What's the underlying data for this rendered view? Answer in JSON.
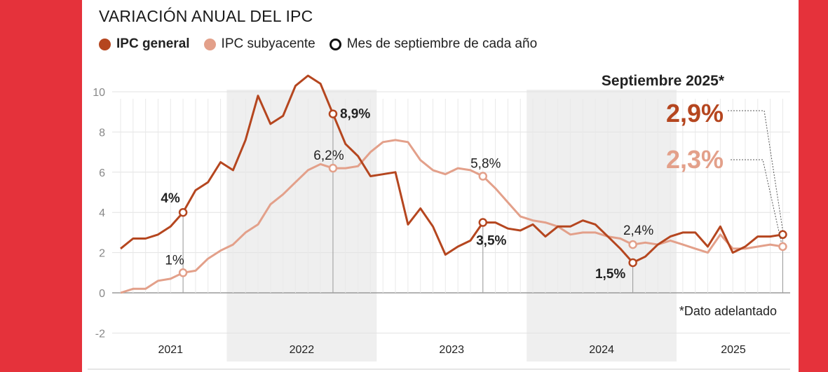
{
  "colors": {
    "frame": "#e5323b",
    "general": "#b5461f",
    "subyacente": "#e3a08a",
    "shade": "#efefef"
  },
  "chart_data": {
    "type": "line",
    "title": "VARIACIÓN ANUAL DEL IPC",
    "legend": [
      {
        "name": "IPC general",
        "marker": "dot-dark"
      },
      {
        "name": "IPC subyacente",
        "marker": "dot-light"
      },
      {
        "name": "Mes de septiembre de cada año",
        "marker": "ring"
      }
    ],
    "legend_position": "top-left",
    "xlabel": "",
    "ylabel": "",
    "ylim": [
      -2,
      10
    ],
    "yticks": [
      -2,
      0,
      2,
      4,
      6,
      8,
      10
    ],
    "grid": true,
    "x_start": "2021-04",
    "x_end": "2025-09",
    "year_labels": [
      "2021",
      "2022",
      "2023",
      "2024",
      "2025"
    ],
    "shaded_years": [
      "2022",
      "2024"
    ],
    "series": [
      {
        "name": "IPC general",
        "values": [
          2.2,
          2.7,
          2.7,
          2.9,
          3.3,
          4.0,
          5.1,
          5.5,
          6.5,
          6.1,
          7.6,
          9.8,
          8.4,
          8.8,
          10.3,
          10.8,
          10.4,
          8.9,
          7.4,
          6.8,
          5.8,
          5.9,
          6.0,
          3.4,
          4.2,
          3.3,
          1.9,
          2.3,
          2.6,
          3.5,
          3.5,
          3.2,
          3.1,
          3.4,
          2.8,
          3.3,
          3.3,
          3.6,
          3.4,
          2.8,
          2.2,
          1.5,
          1.8,
          2.4,
          2.8,
          3.0,
          3.0,
          2.3,
          3.3,
          2.0,
          2.3,
          2.8,
          2.8,
          2.9
        ]
      },
      {
        "name": "IPC subyacente",
        "values": [
          0.0,
          0.2,
          0.2,
          0.6,
          0.7,
          1.0,
          1.1,
          1.7,
          2.1,
          2.4,
          3.0,
          3.4,
          4.4,
          4.9,
          5.5,
          6.1,
          6.4,
          6.2,
          6.2,
          6.3,
          7.0,
          7.5,
          7.6,
          7.5,
          6.6,
          6.1,
          5.9,
          6.2,
          6.1,
          5.8,
          5.2,
          4.5,
          3.8,
          3.6,
          3.5,
          3.3,
          2.9,
          3.0,
          3.0,
          2.8,
          2.7,
          2.4,
          2.5,
          2.4,
          2.6,
          2.4,
          2.2,
          2.0,
          2.9,
          2.2,
          2.2,
          2.3,
          2.4,
          2.3
        ]
      }
    ],
    "annotations": [
      {
        "label": "4%",
        "series": "IPC general",
        "month": "2021-09",
        "value": 4.0,
        "bold": true
      },
      {
        "label": "1%",
        "series": "IPC subyacente",
        "month": "2021-09",
        "value": 1.0,
        "bold": false
      },
      {
        "label": "8,9%",
        "series": "IPC general",
        "month": "2022-09",
        "value": 8.9,
        "bold": true
      },
      {
        "label": "6,2%",
        "series": "IPC subyacente",
        "month": "2022-09",
        "value": 6.2,
        "bold": false
      },
      {
        "label": "5,8%",
        "series": "IPC subyacente",
        "month": "2023-09",
        "value": 5.8,
        "bold": false
      },
      {
        "label": "3,5%",
        "series": "IPC general",
        "month": "2023-09",
        "value": 3.5,
        "bold": true
      },
      {
        "label": "2,4%",
        "series": "IPC subyacente",
        "month": "2024-09",
        "value": 2.4,
        "bold": false
      },
      {
        "label": "1,5%",
        "series": "IPC general",
        "month": "2024-09",
        "value": 1.5,
        "bold": true
      }
    ],
    "callout": {
      "title": "Septiembre 2025*",
      "general": "2,9%",
      "subyacente": "2,3%"
    },
    "footnote": "*Dato adelantado"
  }
}
